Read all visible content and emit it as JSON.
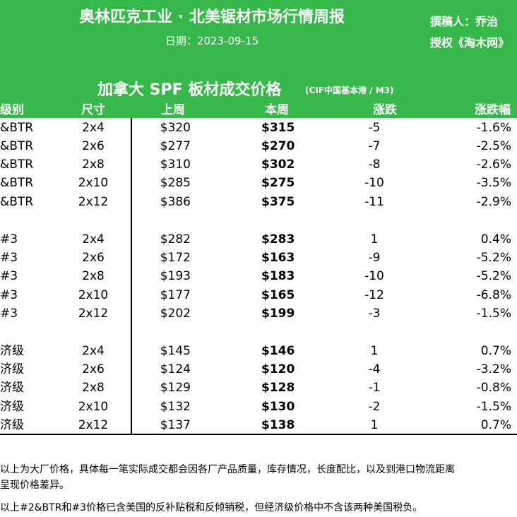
{
  "header": {
    "title": "奥林匹克工业 · 北美锯材市场行情周报",
    "date_label": "日期：2023-09-15",
    "author_label": "撰稿人：乔治",
    "license_label": "授权《淘木网》"
  },
  "table": {
    "title": "加拿大 SPF 板材成交价格",
    "unit": "(CIF中国基本港 / M3)",
    "columns": {
      "grade": "级别",
      "size": "尺寸",
      "last_week": "上周",
      "this_week": "本周",
      "change": "涨跌",
      "pct": "涨跌幅"
    },
    "rows": [
      {
        "grade": "&BTR",
        "size": "2x4",
        "last": "$320",
        "this": "$315",
        "change": "-5",
        "pct": "-1.6%"
      },
      {
        "grade": "&BTR",
        "size": "2x6",
        "last": "$277",
        "this": "$270",
        "change": "-7",
        "pct": "-2.5%"
      },
      {
        "grade": "&BTR",
        "size": "2x8",
        "last": "$310",
        "this": "$302",
        "change": "-8",
        "pct": "-2.6%"
      },
      {
        "grade": "&BTR",
        "size": "2x10",
        "last": "$285",
        "this": "$275",
        "change": "-10",
        "pct": "-3.5%"
      },
      {
        "grade": "&BTR",
        "size": "2x12",
        "last": "$386",
        "this": "$375",
        "change": "-11",
        "pct": "-2.9%"
      },
      {
        "grade": "#3",
        "size": "2x4",
        "last": "$282",
        "this": "$283",
        "change": "1",
        "pct": "0.4%"
      },
      {
        "grade": "#3",
        "size": "2x6",
        "last": "$172",
        "this": "$163",
        "change": "-9",
        "pct": "-5.2%"
      },
      {
        "grade": "#3",
        "size": "2x8",
        "last": "$193",
        "this": "$183",
        "change": "-10",
        "pct": "-5.2%"
      },
      {
        "grade": "#3",
        "size": "2x10",
        "last": "$177",
        "this": "$165",
        "change": "-12",
        "pct": "-6.8%"
      },
      {
        "grade": "#3",
        "size": "2x12",
        "last": "$202",
        "this": "$199",
        "change": "-3",
        "pct": "-1.5%"
      },
      {
        "grade": "济级",
        "size": "2x4",
        "last": "$145",
        "this": "$146",
        "change": "1",
        "pct": "0.7%"
      },
      {
        "grade": "济级",
        "size": "2x6",
        "last": "$124",
        "this": "$120",
        "change": "-4",
        "pct": "-3.2%"
      },
      {
        "grade": "济级",
        "size": "2x8",
        "last": "$129",
        "this": "$128",
        "change": "-1",
        "pct": "-0.8%"
      },
      {
        "grade": "济级",
        "size": "2x10",
        "last": "$132",
        "this": "$130",
        "change": "-2",
        "pct": "-1.5%"
      },
      {
        "grade": "济级",
        "size": "2x12",
        "last": "$137",
        "this": "$138",
        "change": "1",
        "pct": "0.7%"
      }
    ]
  },
  "notes": {
    "line1": "以上为大厂价格，具体每一笔实际成交都会因各厂产品质量，库存情况，长度配比，以及到港口物流距离",
    "line2": "呈现价格差异。",
    "line3": "以上#2&BTR和#3价格已含美国的反补贴税和反倾销税，但经济级价格中不含该两种美国税负。"
  },
  "colors": {
    "header_green": "#36b84a",
    "text_white": "#ffffff"
  }
}
